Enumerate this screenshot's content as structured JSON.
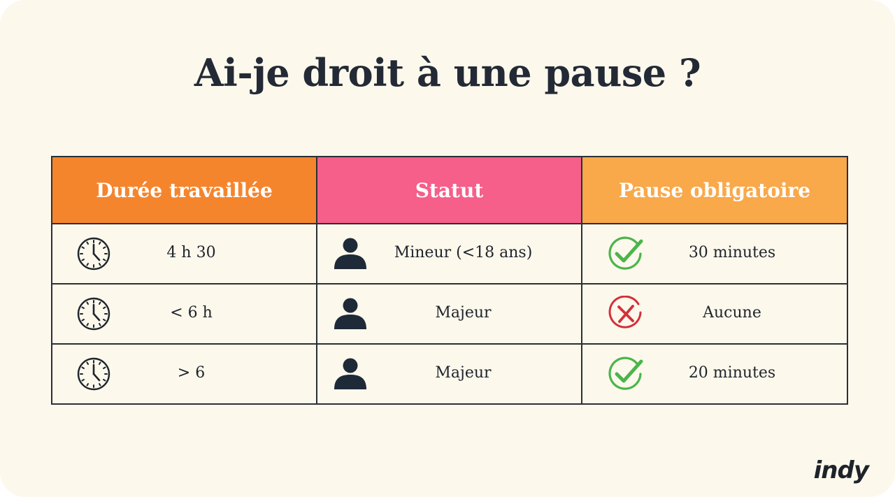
{
  "title": "Ai-je droit à une pause ?",
  "colors": {
    "header_col1": "#f5852d",
    "header_col2": "#f55f89",
    "header_col3": "#f9a84a",
    "check_green": "#4ab54a",
    "cross_red": "#d42f3a"
  },
  "table": {
    "headers": [
      "Durée travaillée",
      "Statut",
      "Pause obligatoire"
    ],
    "rows": [
      {
        "duration": "4 h 30",
        "duration_icon": "clock-icon",
        "status": "Mineur (<18 ans)",
        "status_icon": "person-icon",
        "pause": "30 minutes",
        "pause_icon": "check-icon"
      },
      {
        "duration": "< 6 h",
        "duration_icon": "clock-icon",
        "status": "Majeur",
        "status_icon": "person-icon",
        "pause": "Aucune",
        "pause_icon": "cross-icon"
      },
      {
        "duration": "> 6",
        "duration_icon": "clock-icon",
        "status": "Majeur",
        "status_icon": "person-icon",
        "pause": "20 minutes",
        "pause_icon": "check-icon"
      }
    ]
  },
  "brand": {
    "logo": "indy"
  }
}
